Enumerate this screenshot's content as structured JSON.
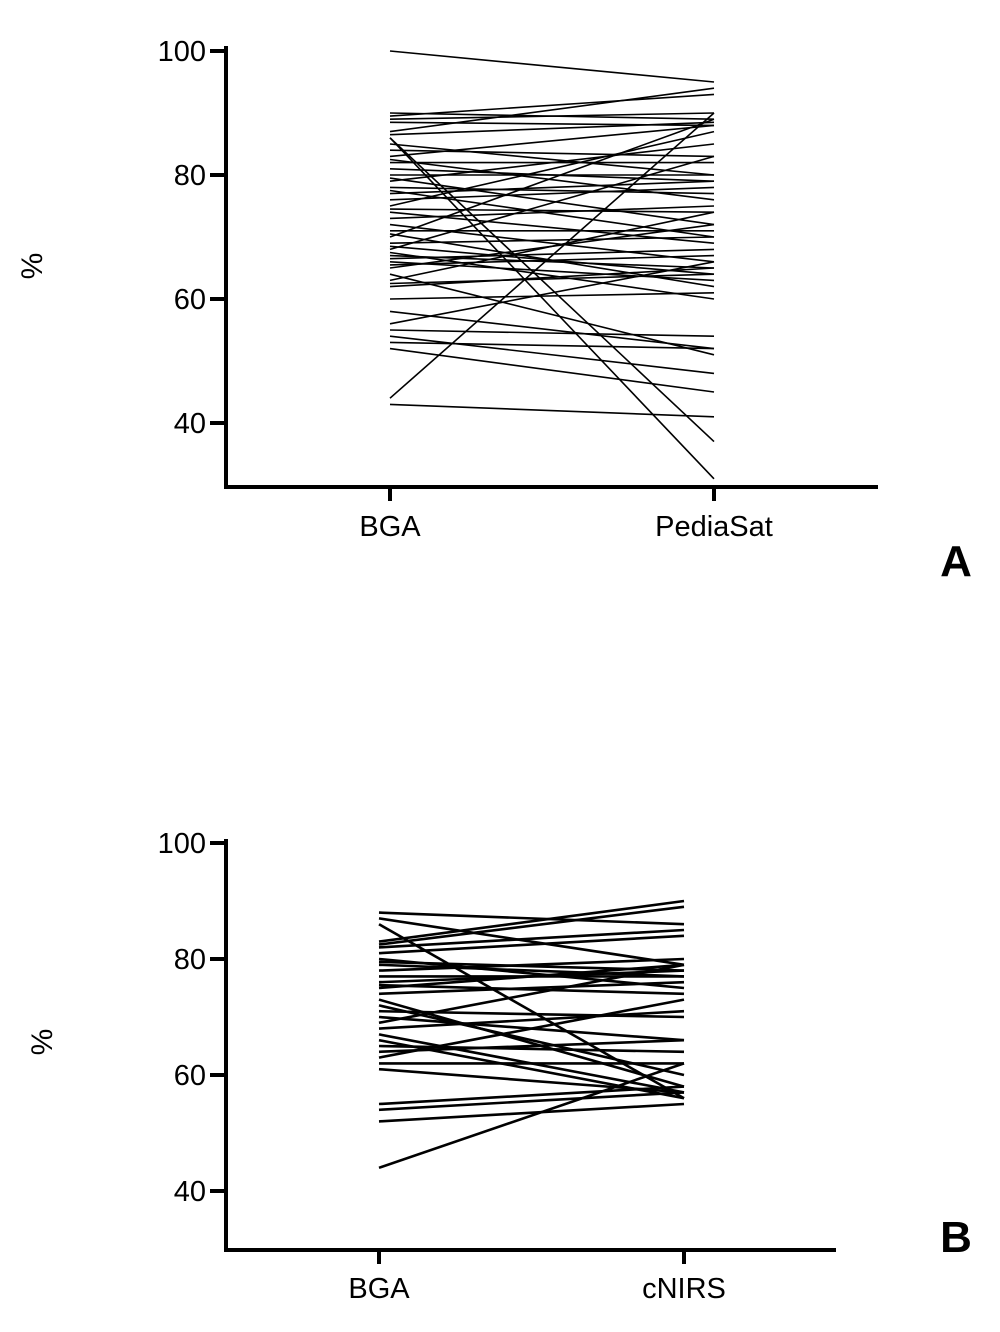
{
  "chart_data": [
    {
      "type": "line",
      "panel_label": "A",
      "ylabel": "%",
      "xlabel": "",
      "categories": [
        "BGA",
        "PediaSat"
      ],
      "yticks": [
        40,
        60,
        80,
        100
      ],
      "ylim": [
        30,
        100
      ],
      "grid": false,
      "pairs": [
        [
          100,
          95
        ],
        [
          90,
          89
        ],
        [
          89.5,
          93
        ],
        [
          89,
          90
        ],
        [
          88.5,
          88
        ],
        [
          87,
          94
        ],
        [
          86.5,
          88.5
        ],
        [
          86,
          37
        ],
        [
          86,
          31
        ],
        [
          85,
          80
        ],
        [
          84,
          83
        ],
        [
          83,
          88
        ],
        [
          82.5,
          76
        ],
        [
          82,
          82
        ],
        [
          81,
          79
        ],
        [
          80,
          80
        ],
        [
          79.5,
          72
        ],
        [
          79,
          85
        ],
        [
          78,
          77
        ],
        [
          77.5,
          70
        ],
        [
          77,
          79
        ],
        [
          76,
          78
        ],
        [
          75,
          87
        ],
        [
          74.5,
          74
        ],
        [
          74,
          69
        ],
        [
          73,
          75
        ],
        [
          72,
          66
        ],
        [
          71,
          71
        ],
        [
          70.5,
          62
        ],
        [
          70,
          89
        ],
        [
          69,
          70
        ],
        [
          68.5,
          64
        ],
        [
          68,
          83
        ],
        [
          67.5,
          60
        ],
        [
          67,
          65
        ],
        [
          66.5,
          68
        ],
        [
          66,
          63
        ],
        [
          65.5,
          67
        ],
        [
          65,
          72
        ],
        [
          64,
          51
        ],
        [
          63,
          74
        ],
        [
          62.5,
          64
        ],
        [
          62,
          65
        ],
        [
          60,
          61
        ],
        [
          58,
          52
        ],
        [
          56,
          66
        ],
        [
          55,
          54
        ],
        [
          54,
          48
        ],
        [
          53,
          52
        ],
        [
          52,
          45
        ],
        [
          44,
          90
        ],
        [
          43,
          41
        ]
      ]
    },
    {
      "type": "line",
      "panel_label": "B",
      "ylabel": "%",
      "xlabel": "",
      "categories": [
        "BGA",
        "cNIRS"
      ],
      "yticks": [
        40,
        60,
        80,
        100
      ],
      "ylim": [
        30,
        100
      ],
      "grid": false,
      "pairs": [
        [
          88,
          86
        ],
        [
          87,
          79
        ],
        [
          86,
          56
        ],
        [
          83,
          90
        ],
        [
          82.5,
          89
        ],
        [
          82,
          85
        ],
        [
          81,
          84
        ],
        [
          80,
          75
        ],
        [
          79.5,
          78
        ],
        [
          79,
          77
        ],
        [
          78,
          80
        ],
        [
          77,
          77
        ],
        [
          76,
          78
        ],
        [
          75.5,
          74
        ],
        [
          75,
          79
        ],
        [
          74,
          76
        ],
        [
          73,
          58
        ],
        [
          72,
          60
        ],
        [
          71,
          70
        ],
        [
          70,
          66
        ],
        [
          69,
          79
        ],
        [
          68,
          71
        ],
        [
          67,
          57
        ],
        [
          66,
          56
        ],
        [
          65,
          64
        ],
        [
          64,
          66
        ],
        [
          63,
          73
        ],
        [
          62,
          62
        ],
        [
          61,
          57
        ],
        [
          55,
          58
        ],
        [
          54,
          57
        ],
        [
          52,
          55
        ],
        [
          44,
          62
        ]
      ]
    }
  ]
}
